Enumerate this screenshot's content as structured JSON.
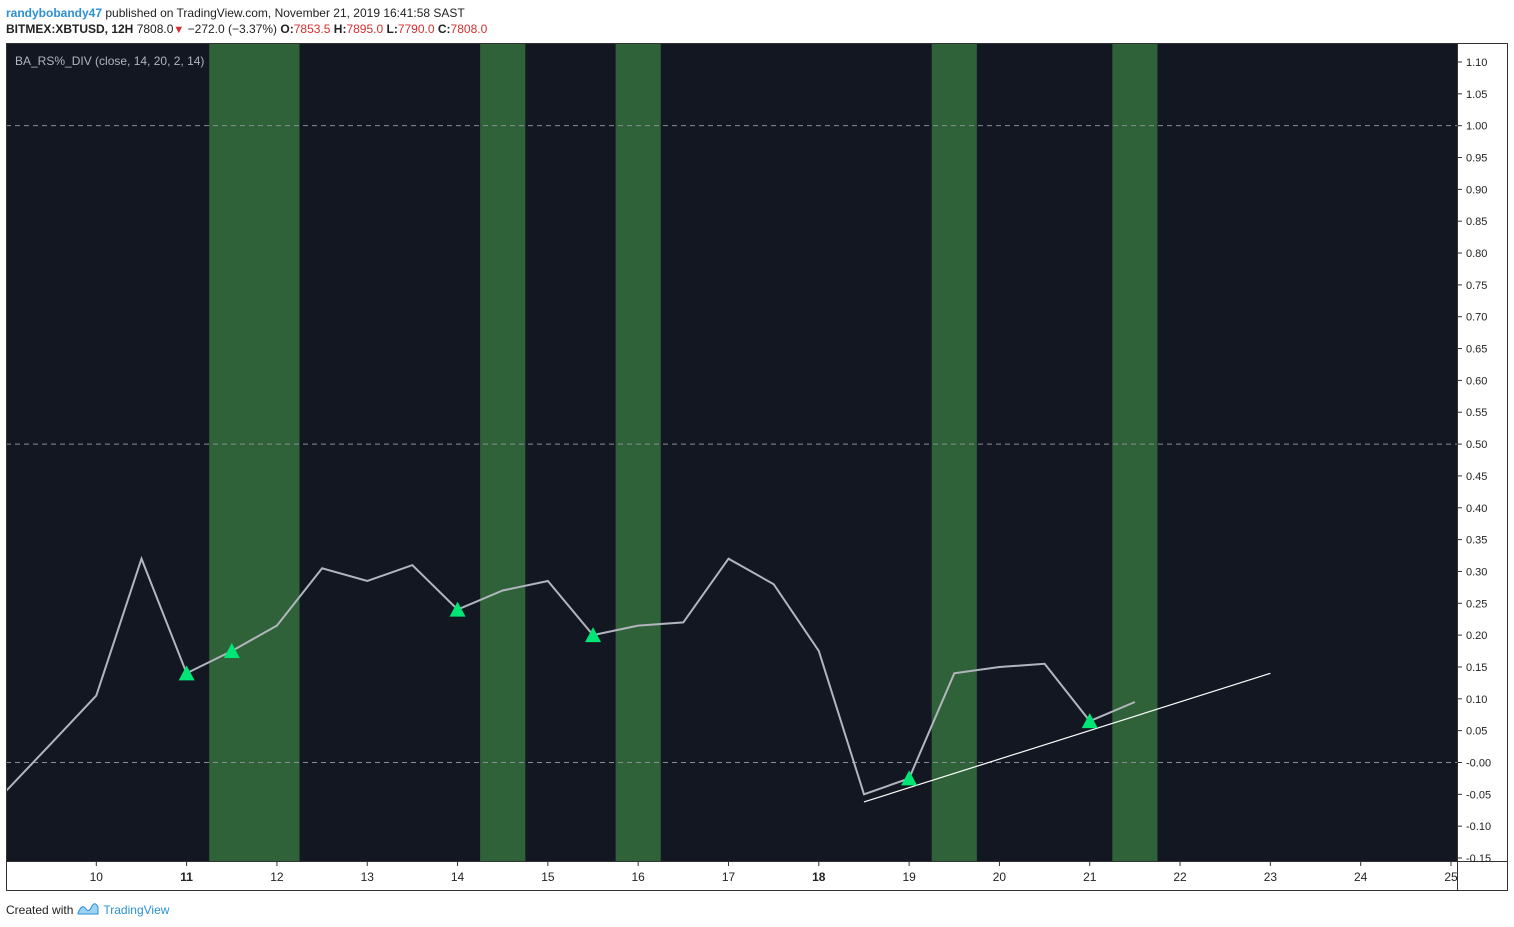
{
  "header": {
    "user": "randybobandy47",
    "published": "published on TradingView.com, November 21, 2019 16:41:58 SAST",
    "symbol": "BITMEX:XBTUSD, 12H",
    "last": "7808.0",
    "change": "−272.0 (−3.37%)",
    "o_label": "O:",
    "o_value": "7853.5",
    "h_label": "H:",
    "h_value": "7895.0",
    "l_label": "L:",
    "l_value": "7790.0",
    "c_label": "C:",
    "c_value": "7808.0"
  },
  "indicator_label": "BA_RS%_DIV (close, 14, 20, 2, 14)",
  "footer": {
    "created_with": "Created with",
    "brand": "TradingView"
  },
  "colors": {
    "background": "#131722",
    "line": "#b2b5be",
    "trend": "#ffffff",
    "band": "#2f6238",
    "marker": "#00e676",
    "axis_text": "#222222",
    "dashed": "#8a8d96"
  },
  "chart_data": {
    "type": "line",
    "y_range": [
      -0.15,
      1.1
    ],
    "y_ticks": [
      "1.10",
      "1.05",
      "1.00",
      "0.95",
      "0.90",
      "0.85",
      "0.80",
      "0.75",
      "0.70",
      "0.65",
      "0.60",
      "0.55",
      "0.50",
      "0.45",
      "0.40",
      "0.35",
      "0.30",
      "0.25",
      "0.20",
      "0.15",
      "0.10",
      "0.05",
      "-0.00",
      "-0.05",
      "-0.10",
      "-0.15"
    ],
    "x_range": [
      9,
      25
    ],
    "x_ticks": [
      {
        "value": 10,
        "label": "10",
        "bold": false
      },
      {
        "value": 11,
        "label": "11",
        "bold": true
      },
      {
        "value": 12,
        "label": "12",
        "bold": false
      },
      {
        "value": 13,
        "label": "13",
        "bold": false
      },
      {
        "value": 14,
        "label": "14",
        "bold": false
      },
      {
        "value": 15,
        "label": "15",
        "bold": false
      },
      {
        "value": 16,
        "label": "16",
        "bold": false
      },
      {
        "value": 17,
        "label": "17",
        "bold": false
      },
      {
        "value": 18,
        "label": "18",
        "bold": true
      },
      {
        "value": 19,
        "label": "19",
        "bold": false
      },
      {
        "value": 20,
        "label": "20",
        "bold": false
      },
      {
        "value": 21,
        "label": "21",
        "bold": false
      },
      {
        "value": 22,
        "label": "22",
        "bold": false
      },
      {
        "value": 23,
        "label": "23",
        "bold": false
      },
      {
        "value": 24,
        "label": "24",
        "bold": false
      },
      {
        "value": 25,
        "label": "25",
        "bold": false
      }
    ],
    "dashed_levels": [
      1.0,
      0.5,
      0.0
    ],
    "series": [
      {
        "x": [
          9.0,
          9.5,
          10.0,
          10.5,
          11.0,
          11.5,
          12.0,
          12.5,
          13.0,
          13.5,
          14.0,
          14.5,
          15.0,
          15.5,
          16.0,
          16.5,
          17.0,
          17.5,
          18.0,
          18.5,
          19.0,
          19.5,
          20.0,
          20.5,
          21.0,
          21.5
        ],
        "y": [
          -0.045,
          0.03,
          0.105,
          0.32,
          0.14,
          0.175,
          0.215,
          0.305,
          0.285,
          0.31,
          0.24,
          0.27,
          0.285,
          0.2,
          0.215,
          0.22,
          0.32,
          0.28,
          0.175,
          -0.05,
          -0.025,
          0.14,
          0.15,
          0.155,
          0.065,
          0.095
        ]
      }
    ],
    "markers": [
      {
        "x": 11.0,
        "y": 0.14
      },
      {
        "x": 11.5,
        "y": 0.175
      },
      {
        "x": 14.0,
        "y": 0.24
      },
      {
        "x": 15.5,
        "y": 0.2
      },
      {
        "x": 19.0,
        "y": -0.025
      },
      {
        "x": 21.0,
        "y": 0.065
      }
    ],
    "bands": [
      [
        11.25,
        12.25
      ],
      [
        14.25,
        14.75
      ],
      [
        15.75,
        16.25
      ],
      [
        19.25,
        19.75
      ],
      [
        21.25,
        21.75
      ]
    ],
    "trendline": {
      "x1": 18.5,
      "y1": -0.062,
      "x2": 23.0,
      "y2": 0.14
    }
  }
}
